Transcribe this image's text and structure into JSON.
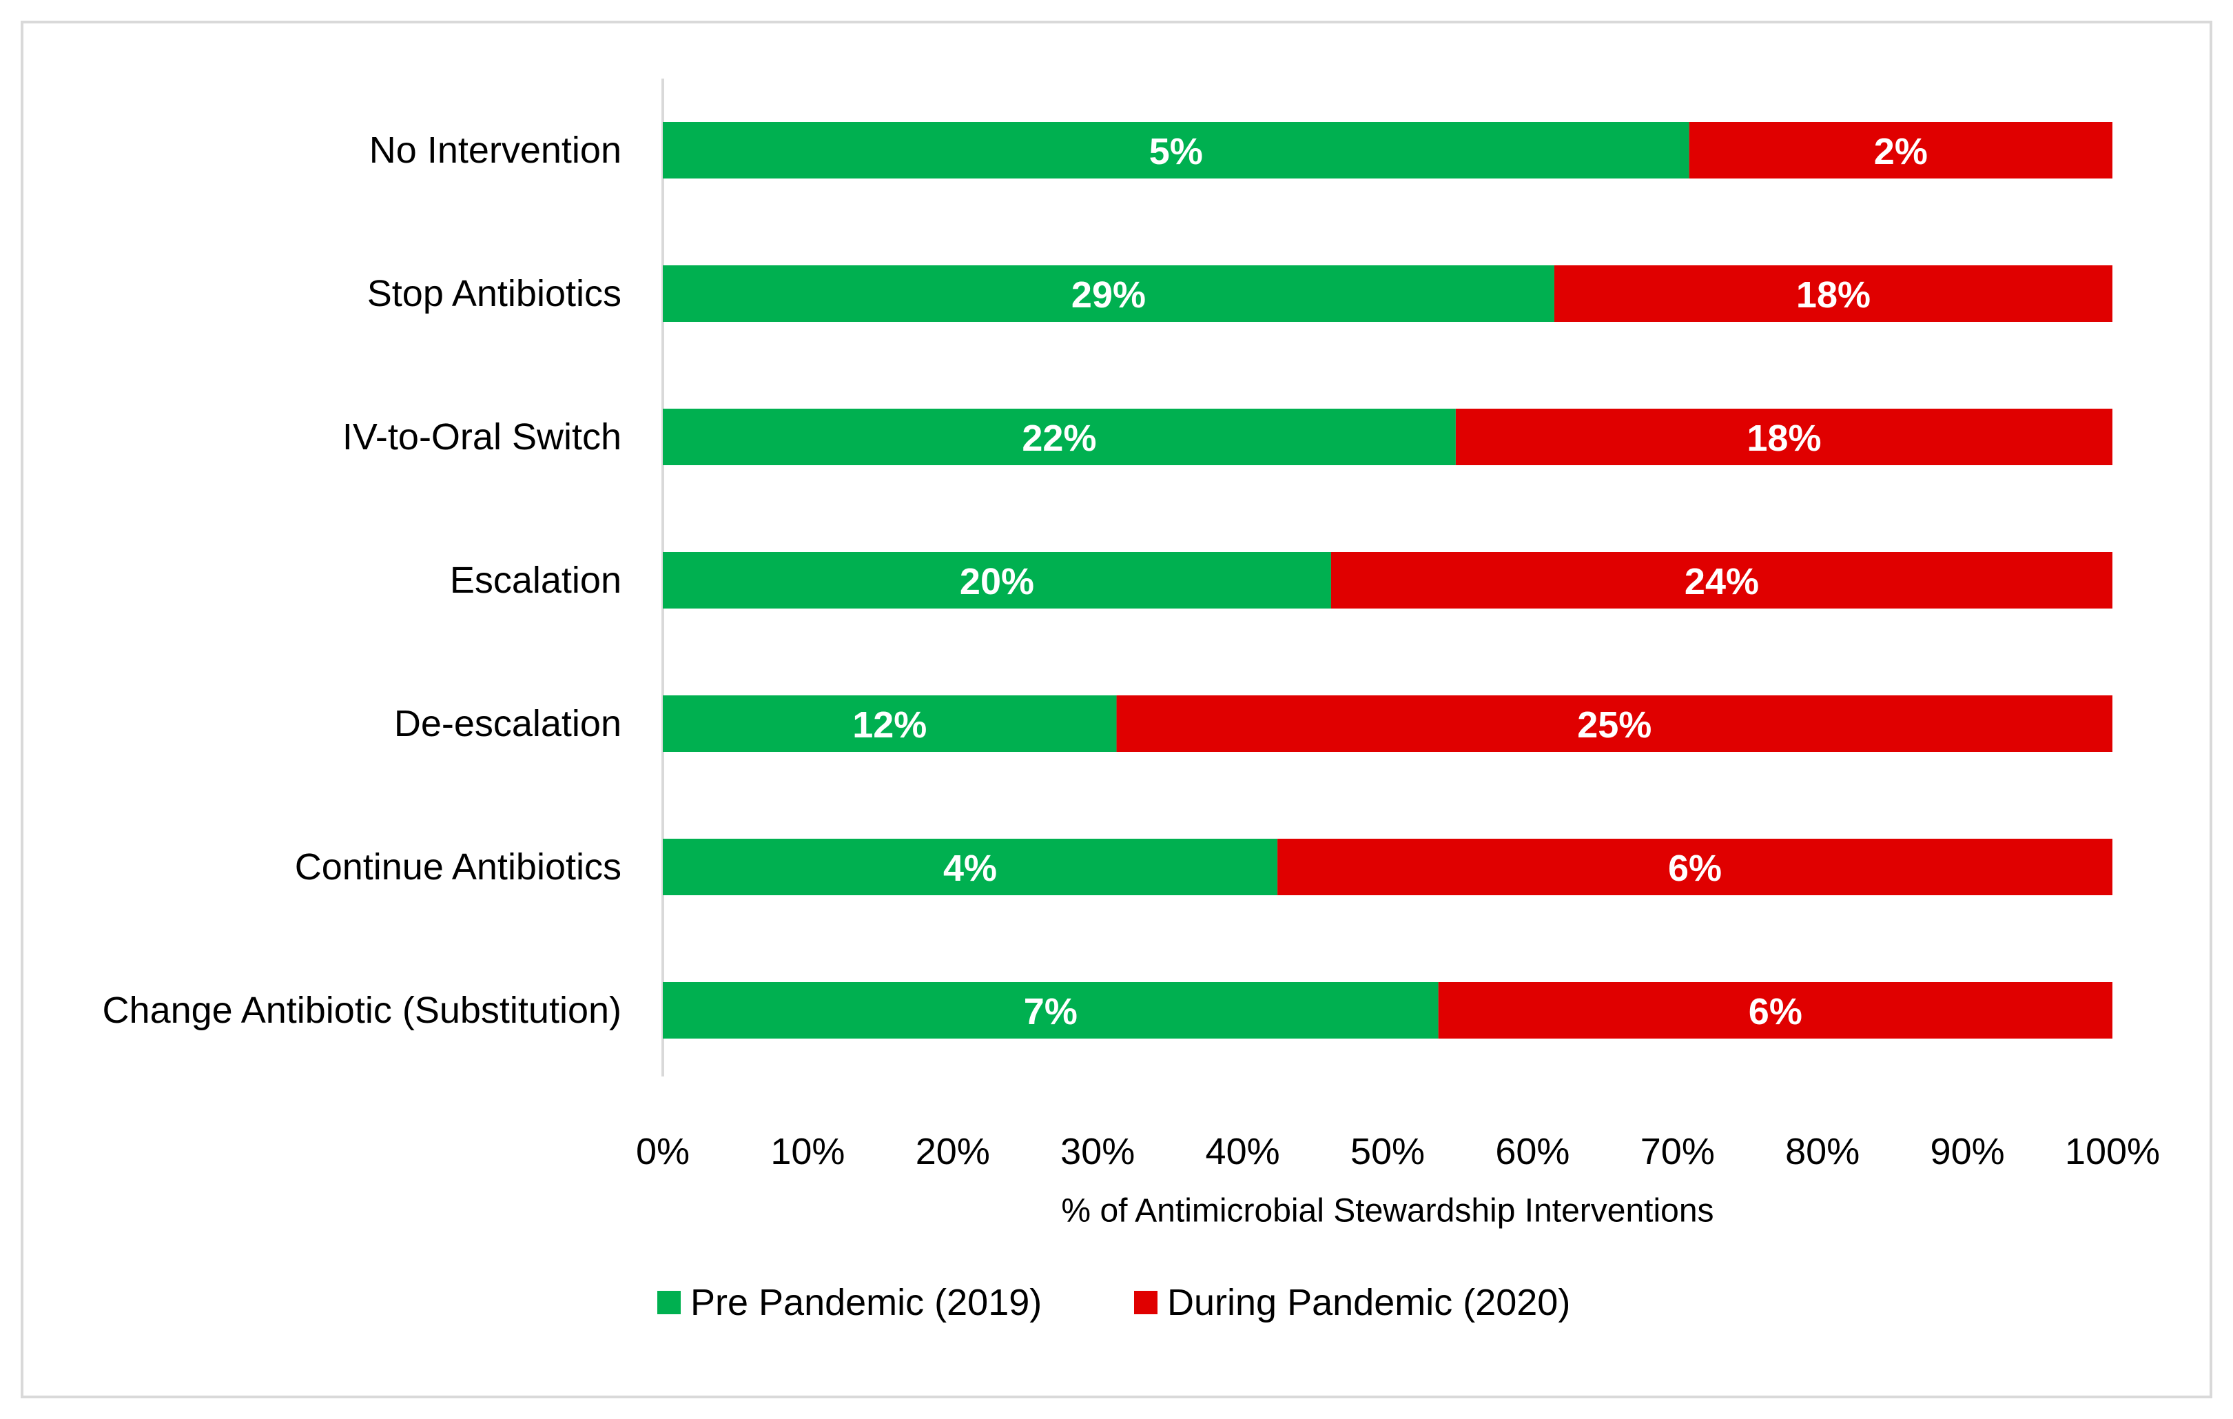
{
  "chart_data": {
    "type": "bar",
    "orientation": "horizontal",
    "stacked": "percent",
    "categories": [
      "No Intervention",
      "Stop Antibiotics",
      "IV-to-Oral Switch",
      "Escalation",
      "De-escalation",
      "Continue Antibiotics",
      "Change Antibiotic (Substitution)"
    ],
    "series": [
      {
        "name": "Pre Pandemic (2019)",
        "color": "#00b050",
        "share": [
          70.8,
          61.5,
          54.7,
          46.1,
          31.3,
          42.4,
          53.5
        ],
        "labels": [
          "5%",
          "29%",
          "22%",
          "20%",
          "12%",
          "4%",
          "7%"
        ]
      },
      {
        "name": "During Pandemic (2020)",
        "color": "#e00000",
        "share": [
          29.2,
          38.5,
          45.3,
          53.9,
          68.7,
          57.6,
          46.5
        ],
        "labels": [
          "2%",
          "18%",
          "18%",
          "24%",
          "25%",
          "6%",
          "6%"
        ]
      }
    ],
    "xlim": [
      0,
      100
    ],
    "xticks": [
      "0%",
      "10%",
      "20%",
      "30%",
      "40%",
      "50%",
      "60%",
      "70%",
      "80%",
      "90%",
      "100%"
    ],
    "xlabel": "% of Antimicrobial Stewardship Interventions",
    "ylabel": "",
    "title": "",
    "grid": false,
    "legend_position": "bottom"
  }
}
